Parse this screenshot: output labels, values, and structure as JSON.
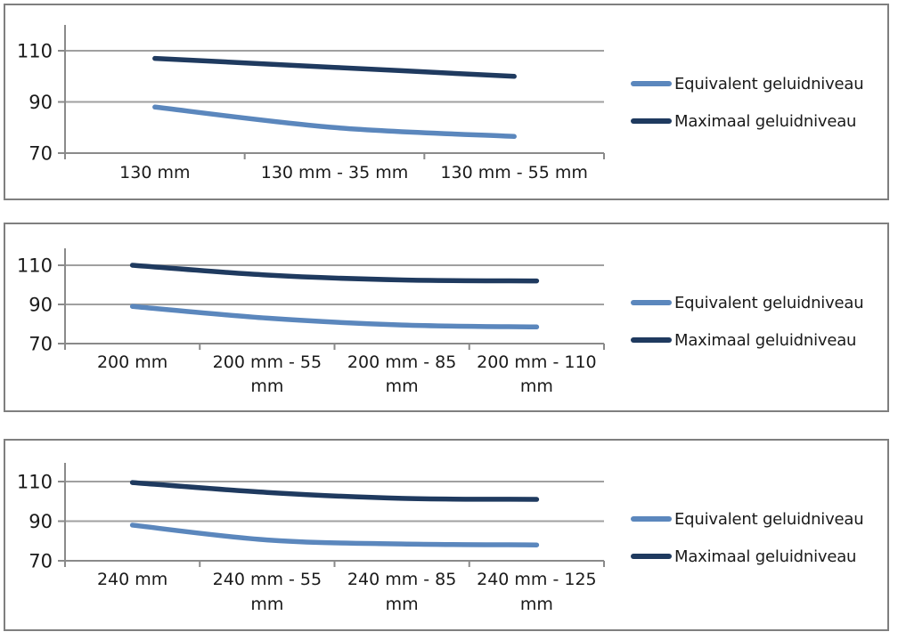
{
  "colors": {
    "equivalent": "#5B87BD",
    "maximaal": "#1F3A5F",
    "gridline": "#A0A0A0",
    "axis": "#8A8A8A",
    "panel_border": "#7F7F7F",
    "text": "#1A1A1A"
  },
  "legend": {
    "items": [
      {
        "label": "Equivalent geluidniveau",
        "color_key": "equivalent"
      },
      {
        "label": "Maximaal geluidniveau",
        "color_key": "maximaal"
      }
    ],
    "position": "right"
  },
  "y_axis": {
    "ticks": [
      70,
      90,
      110
    ],
    "min": 70,
    "max": 120
  },
  "chart_data": [
    {
      "type": "line",
      "title": "",
      "xlabel": "",
      "ylabel": "",
      "categories": [
        "130 mm",
        "130 mm - 35 mm",
        "130 mm - 55 mm"
      ],
      "series": [
        {
          "name": "Equivalent geluidniveau",
          "color_key": "equivalent",
          "values": [
            88,
            80,
            76.5
          ]
        },
        {
          "name": "Maximaal geluidniveau",
          "color_key": "maximaal",
          "values": [
            107,
            103.5,
            100
          ]
        }
      ],
      "ylim": [
        70,
        120
      ],
      "yticks": [
        70,
        90,
        110
      ],
      "grid": true,
      "legend_position": "right"
    },
    {
      "type": "line",
      "title": "",
      "xlabel": "",
      "ylabel": "",
      "categories": [
        "200 mm",
        "200 mm - 55 mm",
        "200 mm - 85 mm",
        "200 mm - 110 mm"
      ],
      "series": [
        {
          "name": "Equivalent geluidniveau",
          "color_key": "equivalent",
          "values": [
            89,
            83,
            79.5,
            78.5
          ]
        },
        {
          "name": "Maximaal geluidniveau",
          "color_key": "maximaal",
          "values": [
            110,
            105,
            102.5,
            102
          ]
        }
      ],
      "ylim": [
        70,
        120
      ],
      "yticks": [
        70,
        90,
        110
      ],
      "grid": true,
      "legend_position": "right"
    },
    {
      "type": "line",
      "title": "",
      "xlabel": "",
      "ylabel": "",
      "categories": [
        "240 mm",
        "240 mm - 55 mm",
        "240 mm - 85 mm",
        "240 mm - 125 mm"
      ],
      "series": [
        {
          "name": "Equivalent geluidniveau",
          "color_key": "equivalent",
          "values": [
            88,
            80.5,
            78.5,
            78
          ]
        },
        {
          "name": "Maximaal geluidniveau",
          "color_key": "maximaal",
          "values": [
            109.5,
            104.5,
            101.5,
            101
          ]
        }
      ],
      "ylim": [
        70,
        120
      ],
      "yticks": [
        70,
        90,
        110
      ],
      "grid": true,
      "legend_position": "right"
    }
  ]
}
